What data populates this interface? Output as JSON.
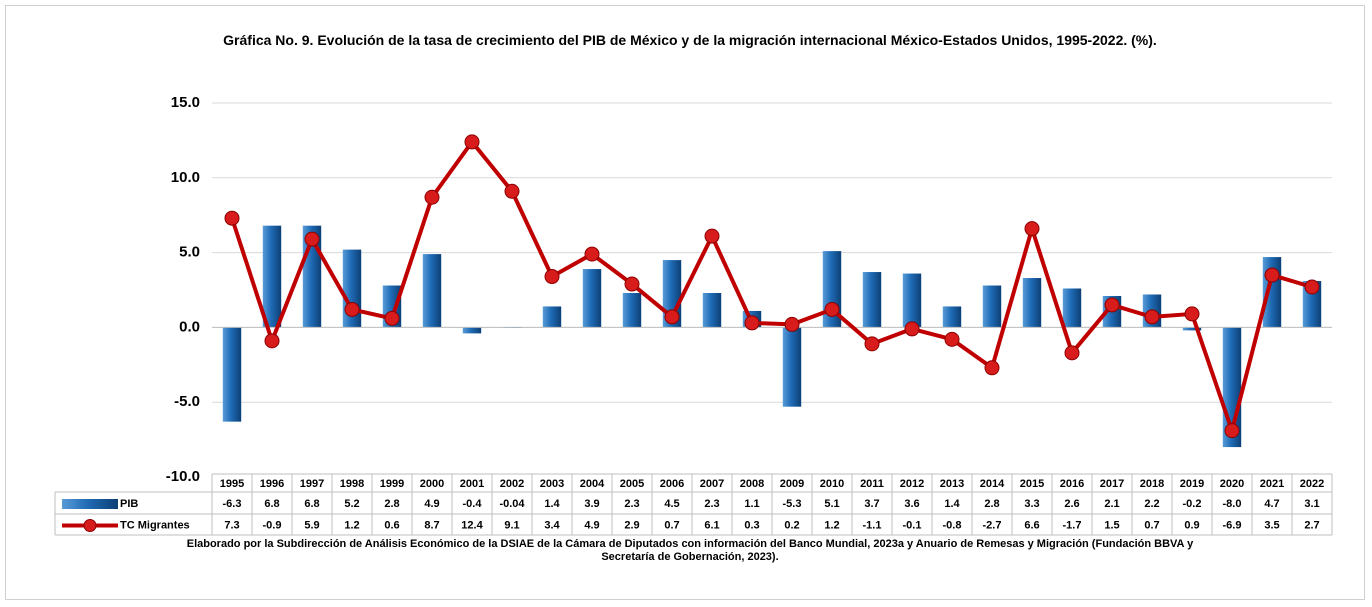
{
  "chart_data": {
    "type": "bar-line-table",
    "title": "Gráfica No. 9. Evolución de la tasa de crecimiento del PIB de México y de la migración internacional México-Estados Unidos, 1995-2022. (%).",
    "source": "Elaborado por la Subdirección de Análisis Económico de la DSIAE de la Cámara de Diputados con información del Banco Mundial, 2023a y Anuario de Remesas y Migración (Fundación BBVA y Secretaría de Gobernación, 2023).",
    "categories": [
      "1995",
      "1996",
      "1997",
      "1998",
      "1999",
      "2000",
      "2001",
      "2002",
      "2003",
      "2004",
      "2005",
      "2006",
      "2007",
      "2008",
      "2009",
      "2010",
      "2011",
      "2012",
      "2013",
      "2014",
      "2015",
      "2016",
      "2017",
      "2018",
      "2019",
      "2020",
      "2021",
      "2022"
    ],
    "series": [
      {
        "name": "PIB",
        "kind": "bar",
        "color": "#1f6bb5",
        "values": [
          -6.3,
          6.8,
          6.8,
          5.2,
          2.8,
          4.9,
          -0.4,
          -0.04,
          1.4,
          3.9,
          2.3,
          4.5,
          2.3,
          1.1,
          -5.3,
          5.1,
          3.7,
          3.6,
          1.4,
          2.8,
          3.3,
          2.6,
          2.1,
          2.2,
          -0.2,
          -8.0,
          4.7,
          3.1
        ],
        "value_labels": [
          "-6.3",
          "6.8",
          "6.8",
          "5.2",
          "2.8",
          "4.9",
          "-0.4",
          "-0.04",
          "1.4",
          "3.9",
          "2.3",
          "4.5",
          "2.3",
          "1.1",
          "-5.3",
          "5.1",
          "3.7",
          "3.6",
          "1.4",
          "2.8",
          "3.3",
          "2.6",
          "2.1",
          "2.2",
          "-0.2",
          "-8.0",
          "4.7",
          "3.1"
        ]
      },
      {
        "name": "TC Migrantes",
        "kind": "line",
        "color": "#c00000",
        "values": [
          7.3,
          -0.9,
          5.9,
          1.2,
          0.6,
          8.7,
          12.4,
          9.1,
          3.4,
          4.9,
          2.9,
          0.7,
          6.1,
          0.3,
          0.2,
          1.2,
          -1.1,
          -0.1,
          -0.8,
          -2.7,
          6.6,
          -1.7,
          1.5,
          0.7,
          0.9,
          -6.9,
          3.5,
          2.7
        ],
        "value_labels": [
          "7.3",
          "-0.9",
          "5.9",
          "1.2",
          "0.6",
          "8.7",
          "12.4",
          "9.1",
          "3.4",
          "4.9",
          "2.9",
          "0.7",
          "6.1",
          "0.3",
          "0.2",
          "1.2",
          "-1.1",
          "-0.1",
          "-0.8",
          "-2.7",
          "6.6",
          "-1.7",
          "1.5",
          "0.7",
          "0.9",
          "-6.9",
          "3.5",
          "2.7"
        ]
      }
    ],
    "ylim": [
      -10,
      15
    ],
    "yticks": [
      {
        "value": -10,
        "label": "-10.0"
      },
      {
        "value": -5,
        "label": "-5.0"
      },
      {
        "value": 0,
        "label": "0.0"
      },
      {
        "value": 5,
        "label": "5.0"
      },
      {
        "value": 10,
        "label": "10.0"
      },
      {
        "value": 15,
        "label": "15.0"
      }
    ],
    "grid": true
  }
}
